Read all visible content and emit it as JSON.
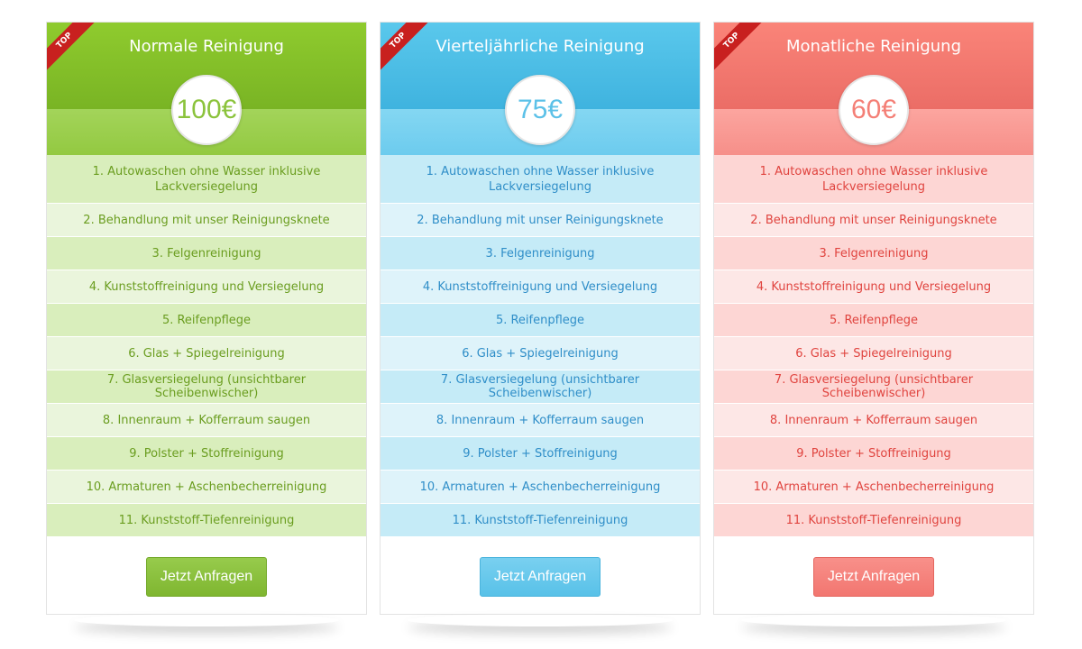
{
  "plans": [
    {
      "ribbon": "TOP",
      "title": "Normale Reinigung",
      "price": "100€",
      "features": [
        "1. Autowaschen ohne Wasser inklusive Lackversiegelung",
        "2. Behandlung mit unser Reinigungsknete",
        "3. Felgenreinigung",
        "4. Kunststoffreinigung und Versiegelung",
        "5. Reifenpflege",
        "6. Glas + Spiegelreinigung",
        "7. Glasversiegelung (unsichtbarer Scheibenwischer)",
        "8. Innenraum + Kofferraum saugen",
        "9. Polster + Stoffreinigung",
        "10. Armaturen + Aschenbecherreinigung",
        "11. Kunststoff-Tiefenreinigung"
      ],
      "button": "Jetzt Anfragen",
      "accent": "#8bc33c"
    },
    {
      "ribbon": "TOP",
      "title": "Vierteljährliche Reinigung",
      "price": "75€",
      "features": [
        "1. Autowaschen ohne Wasser inklusive Lackversiegelung",
        "2. Behandlung mit unser Reinigungsknete",
        "3. Felgenreinigung",
        "4. Kunststoffreinigung und Versiegelung",
        "5. Reifenpflege",
        "6. Glas + Spiegelreinigung",
        "7. Glasversiegelung (unsichtbarer Scheibenwischer)",
        "8. Innenraum + Kofferraum saugen",
        "9. Polster + Stoffreinigung",
        "10. Armaturen + Aschenbecherreinigung",
        "11. Kunststoff-Tiefenreinigung"
      ],
      "button": "Jetzt Anfragen",
      "accent": "#5cc1e8"
    },
    {
      "ribbon": "TOP",
      "title": "Monatliche Reinigung",
      "price": "60€",
      "features": [
        "1. Autowaschen ohne Wasser inklusive Lackversiegelung",
        "2. Behandlung mit unser Reinigungsknete",
        "3. Felgenreinigung",
        "4. Kunststoffreinigung und Versiegelung",
        "5. Reifenpflege",
        "6. Glas + Spiegelreinigung",
        "7. Glasversiegelung (unsichtbarer Scheibenwischer)",
        "8. Innenraum + Kofferraum saugen",
        "9. Polster + Stoffreinigung",
        "10. Armaturen + Aschenbecherreinigung",
        "11. Kunststoff-Tiefenreinigung"
      ],
      "button": "Jetzt Anfragen",
      "accent": "#f47f76"
    }
  ]
}
